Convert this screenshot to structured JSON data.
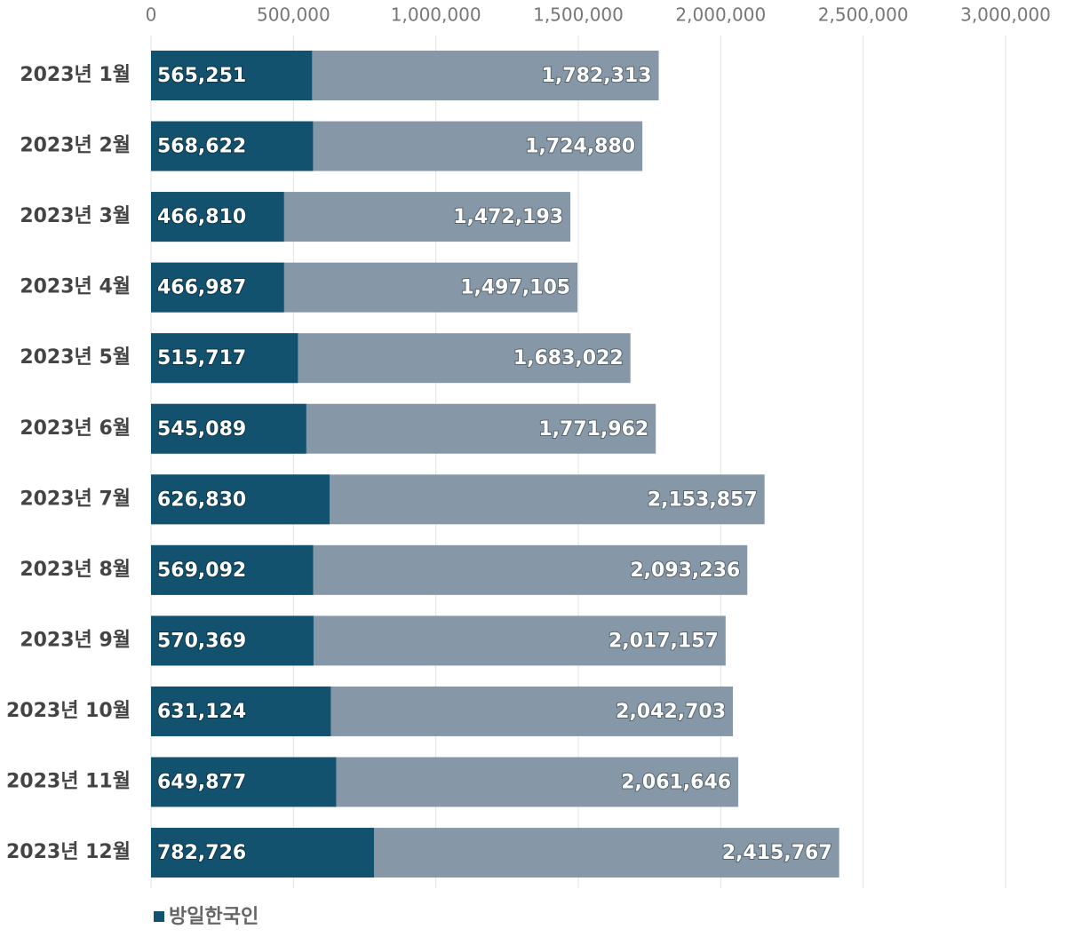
{
  "chart_data": {
    "type": "overlap-bar",
    "orientation": "horizontal",
    "categories": [
      "2023년 1월",
      "2023년 2월",
      "2023년 3월",
      "2023년 4월",
      "2023년 5월",
      "2023년 6월",
      "2023년 7월",
      "2023년 8월",
      "2023년 9월",
      "2023년 10월",
      "2023년 11월",
      "2023년 12월"
    ],
    "series": [
      {
        "color": "#8698a7",
        "values": [
          1782313,
          1724880,
          1472193,
          1497105,
          1683022,
          1771962,
          2153857,
          2093236,
          2017157,
          2042703,
          2061646,
          2415767
        ],
        "value_labels": [
          "1,782,313",
          "1,724,880",
          "1,472,193",
          "1,497,105",
          "1,683,022",
          "1,771,962",
          "2,153,857",
          "2,093,236",
          "2,017,157",
          "2,042,703",
          "2,061,646",
          "2,415,767"
        ]
      },
      {
        "name": "방일한국인",
        "color": "#13526f",
        "values": [
          565251,
          568622,
          466810,
          466987,
          515717,
          545089,
          626830,
          569092,
          570369,
          631124,
          649877,
          782726
        ],
        "value_labels": [
          "565,251",
          "568,622",
          "466,810",
          "466,987",
          "515,717",
          "545,089",
          "626,830",
          "569,092",
          "570,369",
          "631,124",
          "649,877",
          "782,726"
        ]
      }
    ],
    "xlim": [
      0,
      3000000
    ],
    "xticks": [
      0,
      {
        "value": 500000,
        "label": "500,000"
      },
      {
        "value": 1000000,
        "label": "1,000,000"
      },
      {
        "value": 1500000,
        "label": "1,500,000"
      },
      {
        "value": 2000000,
        "label": "2,000,000"
      },
      {
        "value": 2500000,
        "label": "2,500,000"
      },
      {
        "value": 3000000,
        "label": "3,000,000"
      }
    ],
    "grid": true
  }
}
